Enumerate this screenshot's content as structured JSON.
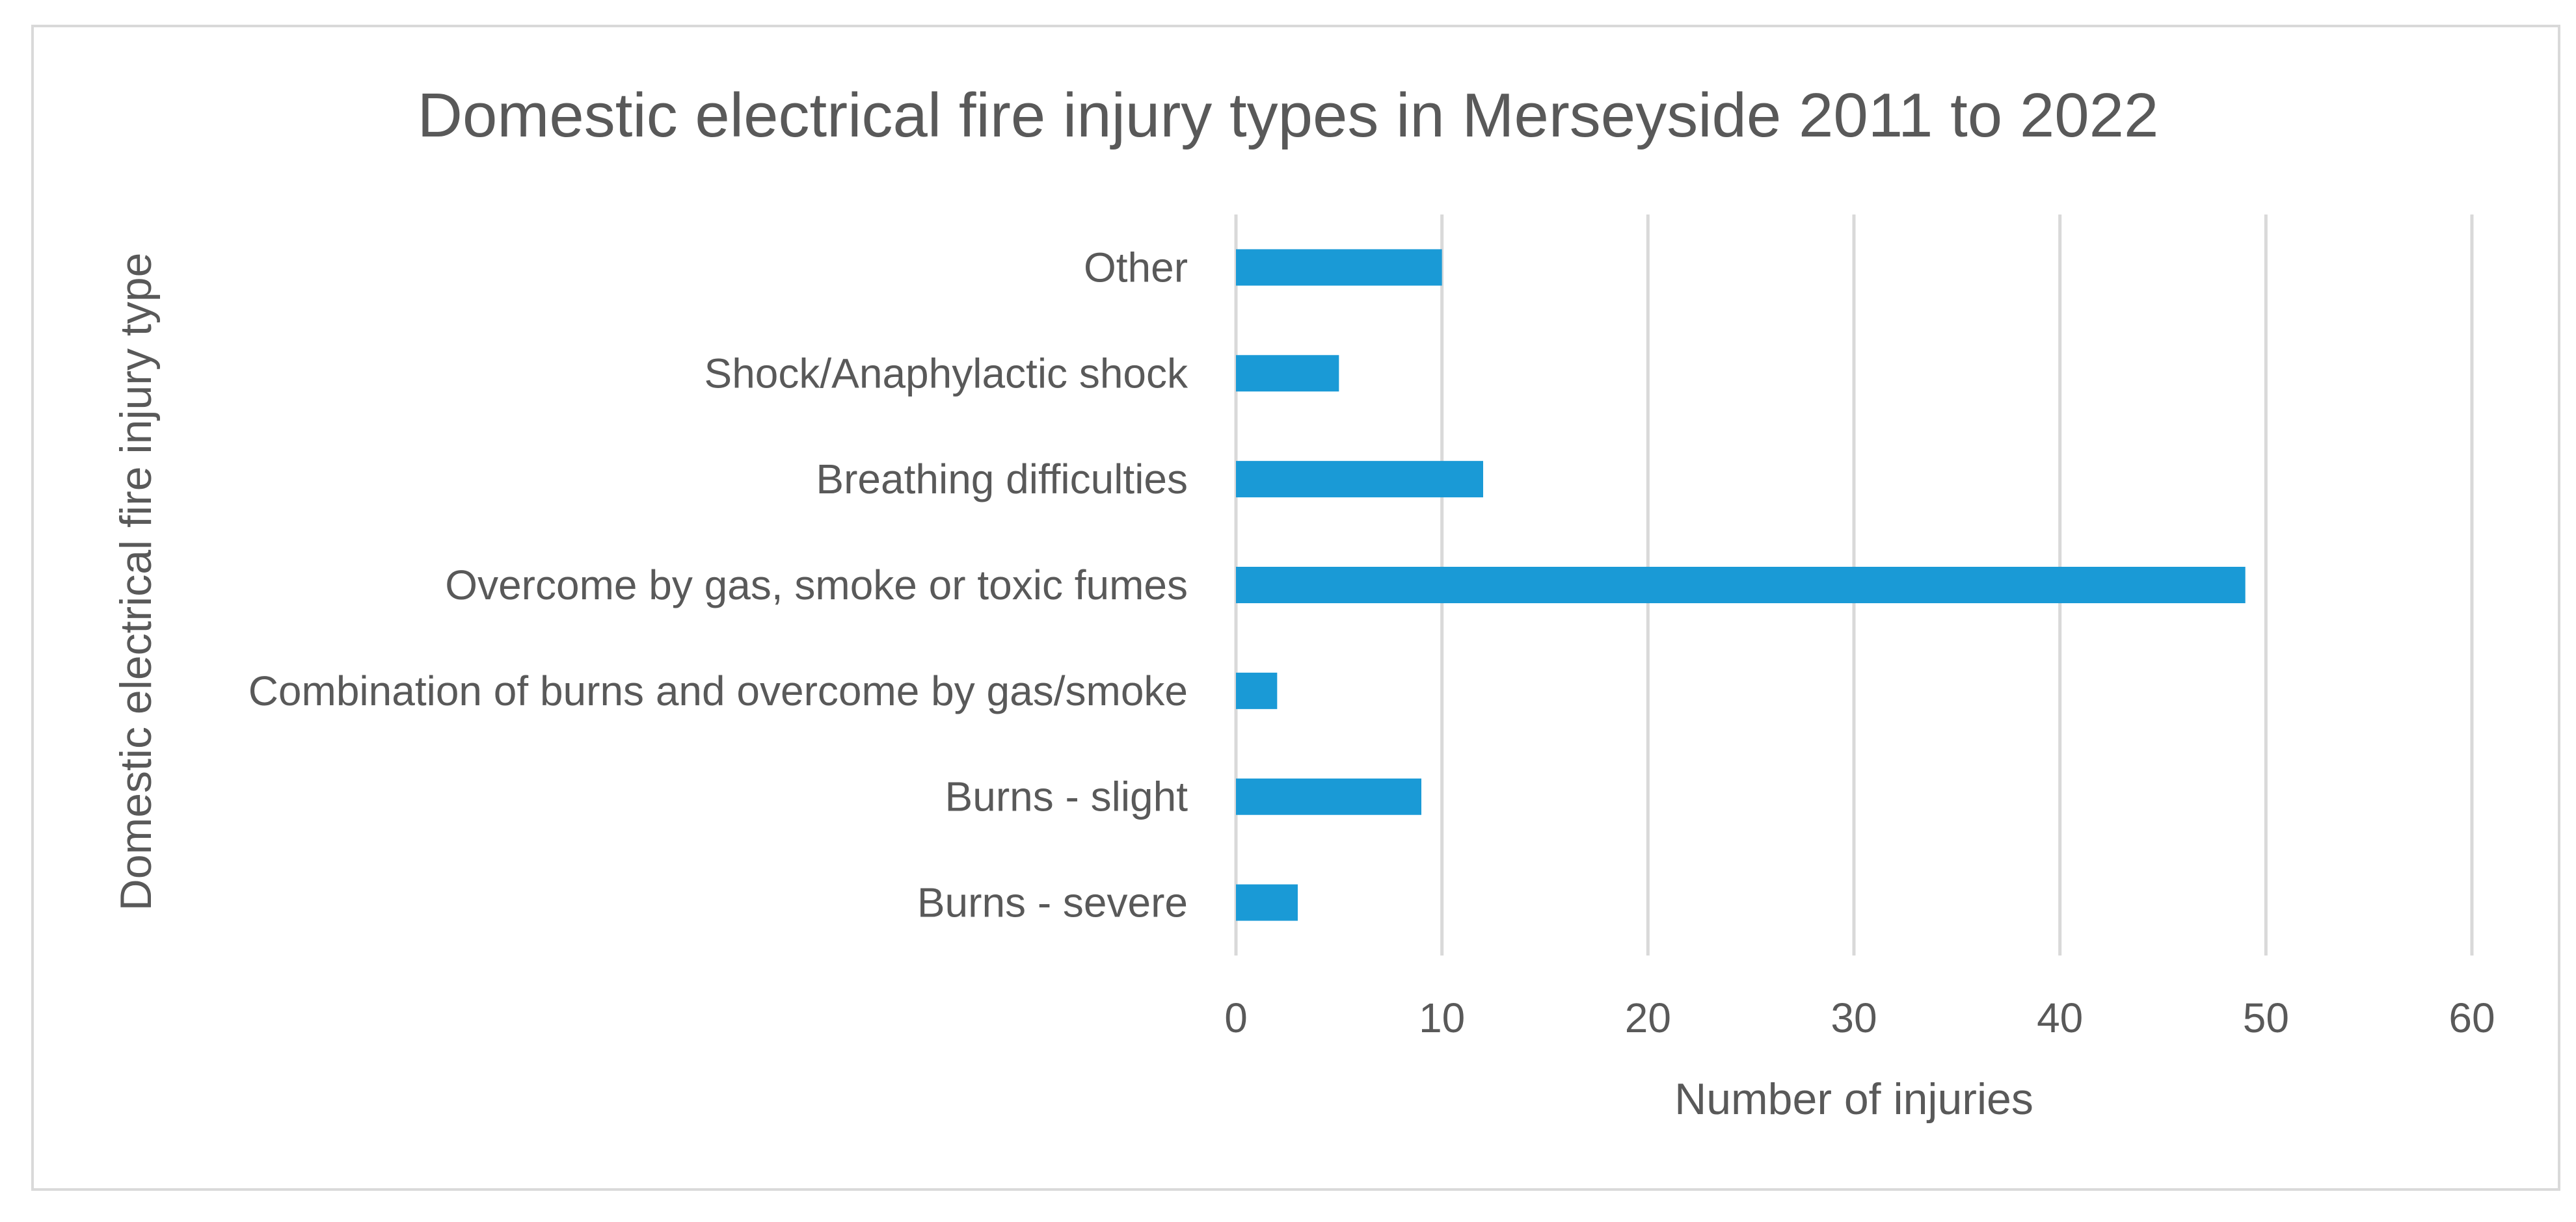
{
  "chart_data": {
    "type": "bar",
    "orientation": "horizontal",
    "title": "Domestic electrical fire injury types in Merseyside 2011 to 2022",
    "xlabel": "Number of injuries",
    "ylabel": "Domestic electrical fire injury type",
    "categories": [
      "Burns - severe",
      "Burns - slight",
      "Combination of burns and overcome by gas/smoke",
      "Overcome by gas, smoke or toxic fumes",
      "Breathing difficulties",
      "Shock/Anaphylactic shock",
      "Other"
    ],
    "values": [
      3,
      9,
      2,
      49,
      12,
      5,
      10
    ],
    "xlim": [
      0,
      60
    ],
    "xticks": [
      0,
      10,
      20,
      30,
      40,
      50,
      60
    ],
    "grid": "vertical",
    "legend": "none",
    "bar_color": "#1a9ad6",
    "gridline_color": "#d9d9d9",
    "text_color": "#595959"
  }
}
